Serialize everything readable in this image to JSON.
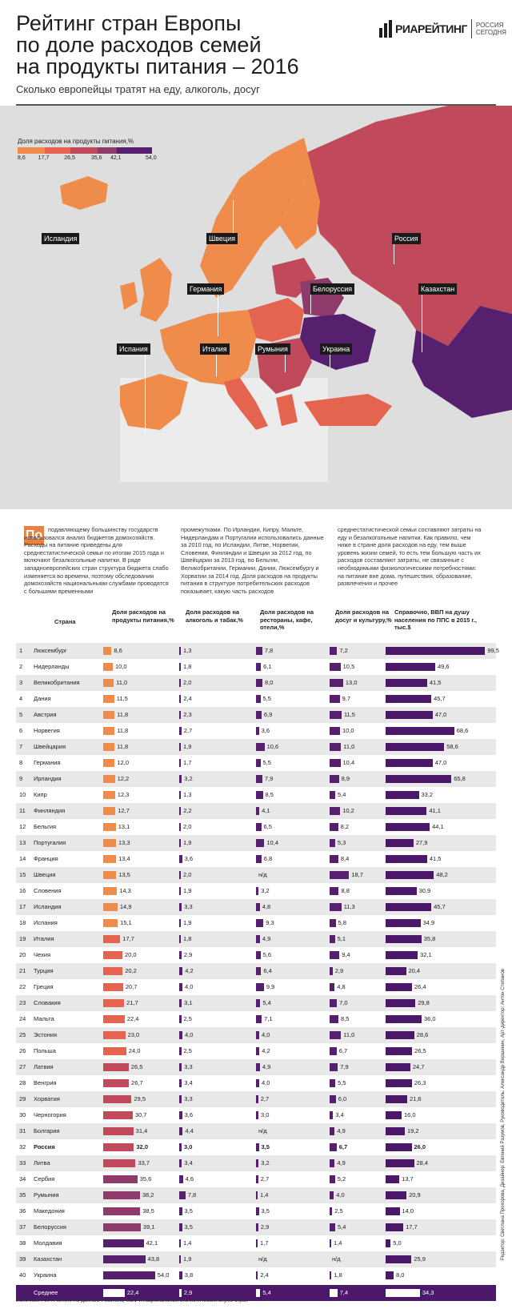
{
  "title": "Рейтинг стран Европы\nпо доле расходов семей\nна продукты питания – 2016",
  "subtitle": "Сколько европейцы тратят на еду, алкоголь, досуг",
  "logo": {
    "brand": "РИАРЕЙТИНГ",
    "sub": "РОССИЯ СЕГОДНЯ"
  },
  "legend": {
    "title": "Доля расходов на продукты питания,%",
    "ticks": [
      "8,6",
      "17,7",
      "26,5",
      "35,6",
      "42,1",
      "54,0"
    ],
    "colors": [
      "#ef8c4c",
      "#e56450",
      "#c04a5b",
      "#8e3a6a",
      "#56206f"
    ]
  },
  "map_labels": [
    "Исландия",
    "Швеция",
    "Россия",
    "Германия",
    "Белоруссия",
    "Казахстан",
    "Испания",
    "Италия",
    "Румыния",
    "Украина"
  ],
  "intro": {
    "dropcap": "По",
    "col1": "подавляющему большинству государств использовался анализ бюджетов домохозяйств. Расходы на питание приведены для среднестатистической семьи по итогам 2015 года и включают безалкогольные напитки. В ряде западноевропейских стран структура бюджета слабо изменяется во времени, поэтому обследования домохозяйств национальными службами проводятся с большими временными",
    "col2": "промежутками. По Ирландии, Кипру, Мальте, Нидерландам и Португалии использовались данные за 2010 год, по Исландии, Литве, Норвегии, Словении, Финляндии и Швеции за 2012 год, по Швейцарии за 2013 год, по Бельгии, Великобритании, Германии, Дании, Люксембургу и Хорватии за 2014 год. Доля расходов на продукты питания в структуре потребительских расходов показывает, какую часть расходов",
    "col3": "среднестатистической семьи составляют затраты на еду и безалкогольные напитки. Как правило, чем ниже в стране доля расходов на еду, тем выше уровень жизни семей, то есть тем большую часть их расходов составляют затраты, не связанные с необходимыми физиологическими потребностями: на питание вне дома, путешествия, образование, развлечения и прочее"
  },
  "table_headers": {
    "country": "Страна",
    "food": "Доля расходов на продукты питания,%",
    "alcohol": "Доля расходов на алкоголь и табак,%",
    "restaurants": "Доля расходов на рестораны, кафе, отели,%",
    "leisure": "Доля расходов на досуг и культуру,%",
    "gdp": "Справочно, ВВП на душу населения по ППС в 2015 г., тыс.$"
  },
  "bar_colors": {
    "alcohol": "#56206f",
    "restaurants": "#56206f",
    "leisure": "#56206f",
    "gdp": "#4c1869"
  },
  "chart_data": {
    "type": "table",
    "title": "Рейтинг стран Европы по доле расходов семей на продукты питания – 2016",
    "columns": [
      "rank",
      "country",
      "food",
      "alcohol",
      "restaurants",
      "leisure",
      "gdp"
    ],
    "rows": [
      {
        "rank": "1",
        "country": "Люксембург",
        "food": "8,6",
        "alcohol": "1,3",
        "restaurants": "7,8",
        "leisure": "7,2",
        "gdp": "99,5"
      },
      {
        "rank": "2",
        "country": "Нидерланды",
        "food": "10,0",
        "alcohol": "1,8",
        "restaurants": "6,1",
        "leisure": "10,5",
        "gdp": "49,6"
      },
      {
        "rank": "3",
        "country": "Великобритания",
        "food": "11,0",
        "alcohol": "2,0",
        "restaurants": "8,0",
        "leisure": "13,0",
        "gdp": "41,5"
      },
      {
        "rank": "4",
        "country": "Дания",
        "food": "11,5",
        "alcohol": "2,4",
        "restaurants": "5,5",
        "leisure": "9,7",
        "gdp": "45,7"
      },
      {
        "rank": "5",
        "country": "Австрия",
        "food": "11,8",
        "alcohol": "2,3",
        "restaurants": "6,9",
        "leisure": "11,5",
        "gdp": "47,0"
      },
      {
        "rank": "6",
        "country": "Норвегия",
        "food": "11,8",
        "alcohol": "2,7",
        "restaurants": "3,6",
        "leisure": "10,0",
        "gdp": "68,6"
      },
      {
        "rank": "7",
        "country": "Швейцария",
        "food": "11,8",
        "alcohol": "1,9",
        "restaurants": "10,6",
        "leisure": "11,0",
        "gdp": "58,6"
      },
      {
        "rank": "8",
        "country": "Германия",
        "food": "12,0",
        "alcohol": "1,7",
        "restaurants": "5,5",
        "leisure": "10,4",
        "gdp": "47,0"
      },
      {
        "rank": "9",
        "country": "Ирландия",
        "food": "12,2",
        "alcohol": "3,2",
        "restaurants": "7,9",
        "leisure": "8,9",
        "gdp": "65,8"
      },
      {
        "rank": "10",
        "country": "Кипр",
        "food": "12,3",
        "alcohol": "1,3",
        "restaurants": "8,5",
        "leisure": "5,4",
        "gdp": "33,2"
      },
      {
        "rank": "11",
        "country": "Финляндия",
        "food": "12,7",
        "alcohol": "2,2",
        "restaurants": "4,1",
        "leisure": "10,2",
        "gdp": "41,1"
      },
      {
        "rank": "12",
        "country": "Бельгия",
        "food": "13,1",
        "alcohol": "2,0",
        "restaurants": "6,5",
        "leisure": "8,2",
        "gdp": "44,1"
      },
      {
        "rank": "13",
        "country": "Португалия",
        "food": "13,3",
        "alcohol": "1,9",
        "restaurants": "10,4",
        "leisure": "5,3",
        "gdp": "27,9"
      },
      {
        "rank": "14",
        "country": "Франция",
        "food": "13,4",
        "alcohol": "3,6",
        "restaurants": "6,8",
        "leisure": "8,4",
        "gdp": "41,5"
      },
      {
        "rank": "15",
        "country": "Швеция",
        "food": "13,5",
        "alcohol": "2,0",
        "restaurants": "н/д",
        "leisure": "18,7",
        "gdp": "48,2"
      },
      {
        "rank": "16",
        "country": "Словения",
        "food": "14,3",
        "alcohol": "1,9",
        "restaurants": "3,2",
        "leisure": "8,8",
        "gdp": "30,9"
      },
      {
        "rank": "17",
        "country": "Исландия",
        "food": "14,9",
        "alcohol": "3,3",
        "restaurants": "4,8",
        "leisure": "11,3",
        "gdp": "45,7"
      },
      {
        "rank": "18",
        "country": "Испания",
        "food": "15,1",
        "alcohol": "1,9",
        "restaurants": "9,3",
        "leisure": "5,8",
        "gdp": "34,9"
      },
      {
        "rank": "19",
        "country": "Италия",
        "food": "17,7",
        "alcohol": "1,8",
        "restaurants": "4,9",
        "leisure": "5,1",
        "gdp": "35,8"
      },
      {
        "rank": "20",
        "country": "Чехия",
        "food": "20,0",
        "alcohol": "2,9",
        "restaurants": "5,6",
        "leisure": "9,4",
        "gdp": "32,1"
      },
      {
        "rank": "21",
        "country": "Турция",
        "food": "20,2",
        "alcohol": "4,2",
        "restaurants": "6,4",
        "leisure": "2,9",
        "gdp": "20,4"
      },
      {
        "rank": "22",
        "country": "Греция",
        "food": "20,7",
        "alcohol": "4,0",
        "restaurants": "9,9",
        "leisure": "4,8",
        "gdp": "26,4"
      },
      {
        "rank": "23",
        "country": "Словакия",
        "food": "21,7",
        "alcohol": "3,1",
        "restaurants": "5,4",
        "leisure": "7,0",
        "gdp": "29,8"
      },
      {
        "rank": "24",
        "country": "Мальта",
        "food": "22,4",
        "alcohol": "2,5",
        "restaurants": "7,1",
        "leisure": "8,5",
        "gdp": "36,0"
      },
      {
        "rank": "25",
        "country": "Эстония",
        "food": "23,0",
        "alcohol": "4,0",
        "restaurants": "4,0",
        "leisure": "11,0",
        "gdp": "28,6"
      },
      {
        "rank": "26",
        "country": "Польша",
        "food": "24,0",
        "alcohol": "2,5",
        "restaurants": "4,2",
        "leisure": "6,7",
        "gdp": "26,5"
      },
      {
        "rank": "27",
        "country": "Латвия",
        "food": "26,5",
        "alcohol": "3,3",
        "restaurants": "4,9",
        "leisure": "7,9",
        "gdp": "24,7"
      },
      {
        "rank": "28",
        "country": "Венгрия",
        "food": "26,7",
        "alcohol": "3,4",
        "restaurants": "4,0",
        "leisure": "5,5",
        "gdp": "26,3"
      },
      {
        "rank": "29",
        "country": "Хорватия",
        "food": "29,5",
        "alcohol": "3,3",
        "restaurants": "2,7",
        "leisure": "6,0",
        "gdp": "21,6"
      },
      {
        "rank": "30",
        "country": "Черногория",
        "food": "30,7",
        "alcohol": "3,6",
        "restaurants": "3,0",
        "leisure": "3,4",
        "gdp": "16,0"
      },
      {
        "rank": "31",
        "country": "Болгария",
        "food": "31,4",
        "alcohol": "4,4",
        "restaurants": "н/д",
        "leisure": "4,9",
        "gdp": "19,2"
      },
      {
        "rank": "32",
        "country": "Россия",
        "food": "32,0",
        "alcohol": "3,0",
        "restaurants": "3,5",
        "leisure": "6,7",
        "gdp": "26,0"
      },
      {
        "rank": "33",
        "country": "Литва",
        "food": "33,7",
        "alcohol": "3,4",
        "restaurants": "3,2",
        "leisure": "4,9",
        "gdp": "28,4"
      },
      {
        "rank": "34",
        "country": "Сербия",
        "food": "35,6",
        "alcohol": "4,6",
        "restaurants": "2,7",
        "leisure": "5,2",
        "gdp": "13,7"
      },
      {
        "rank": "35",
        "country": "Румыния",
        "food": "38,2",
        "alcohol": "7,8",
        "restaurants": "1,4",
        "leisure": "4,0",
        "gdp": "20,9"
      },
      {
        "rank": "36",
        "country": "Македония",
        "food": "38,5",
        "alcohol": "3,5",
        "restaurants": "3,5",
        "leisure": "2,5",
        "gdp": "14,0"
      },
      {
        "rank": "37",
        "country": "Белоруссия",
        "food": "39,1",
        "alcohol": "3,5",
        "restaurants": "2,9",
        "leisure": "5,4",
        "gdp": "17,7"
      },
      {
        "rank": "38",
        "country": "Молдавия",
        "food": "42,1",
        "alcohol": "1,4",
        "restaurants": "1,7",
        "leisure": "1,4",
        "gdp": "5,0"
      },
      {
        "rank": "39",
        "country": "Казахстан",
        "food": "43,8",
        "alcohol": "1,9",
        "restaurants": "н/д",
        "leisure": "н/д",
        "gdp": "25,9"
      },
      {
        "rank": "40",
        "country": "Украина",
        "food": "54,0",
        "alcohol": "3,8",
        "restaurants": "2,4",
        "leisure": "1,8",
        "gdp": "8,0"
      }
    ],
    "average": {
      "country": "Среднее",
      "food": "22,4",
      "alcohol": "2,9",
      "restaurants": "5,4",
      "leisure": "7,4",
      "gdp": "34,3"
    }
  },
  "source": "Источник: РИА Рейтинг по данным Росстата, МВФ и национальных статистических служб стран",
  "credits": "Редактор: Светлана Прохорова, Дизайнер: Евгений Разумов, Руководитель: Александр Вершинин, Арт-директор: Антон Степанов"
}
